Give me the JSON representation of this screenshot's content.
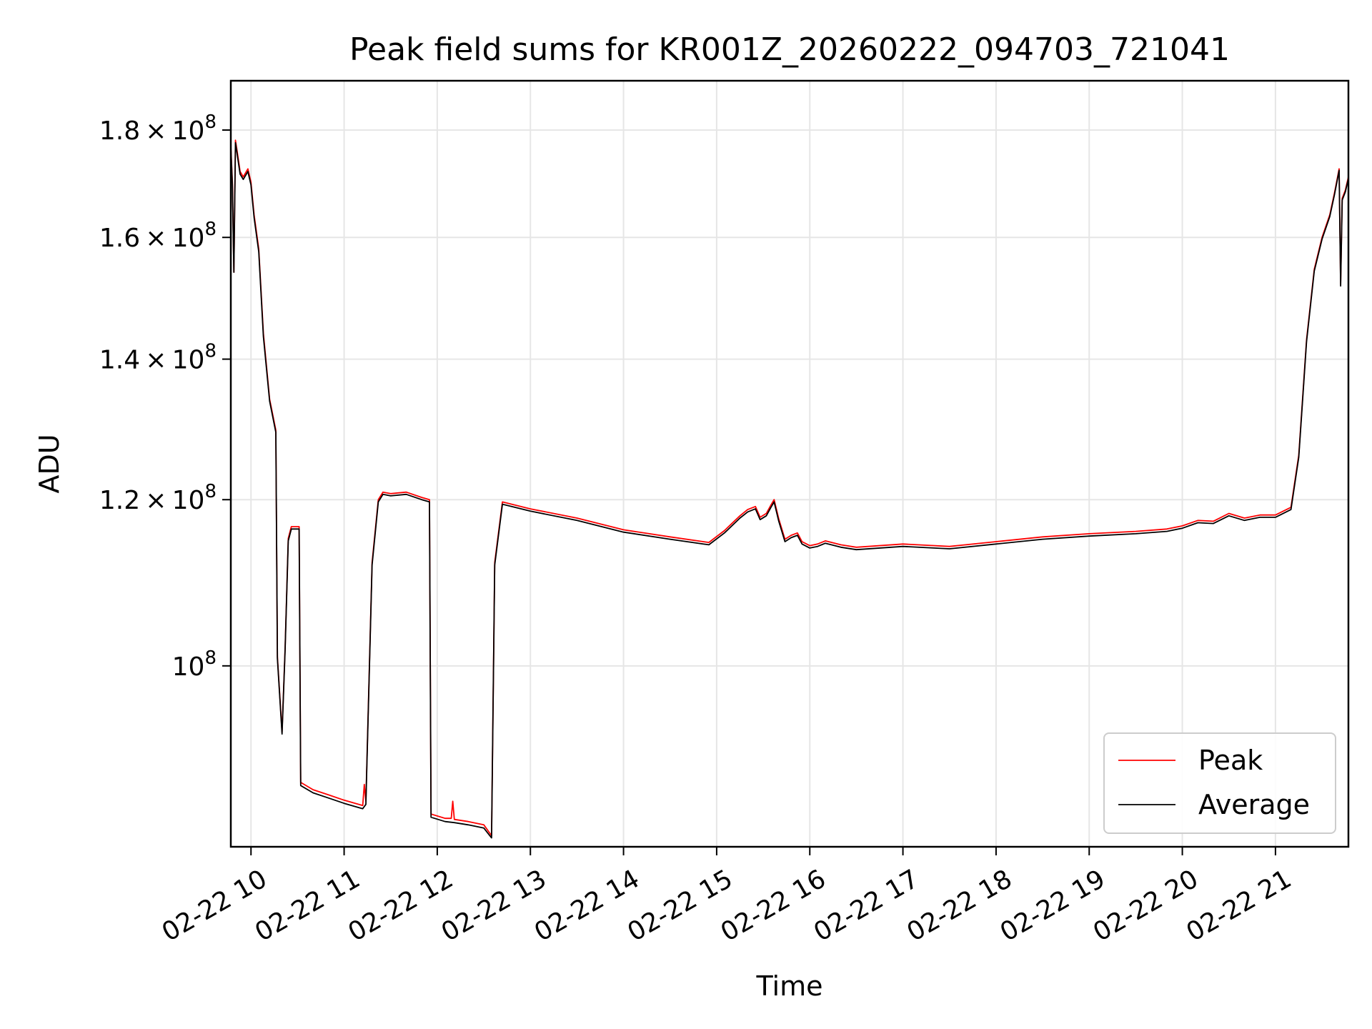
{
  "chart_data": {
    "type": "line",
    "title": "Peak field sums for KR001Z_20260222_094703_721041",
    "xlabel": "Time",
    "ylabel": "ADU",
    "yscale": "log",
    "ylim": [
      82000000,
      190000000
    ],
    "xlim": [
      "2026-02-22 09:47",
      "2026-02-22 21:47"
    ],
    "grid": true,
    "legend_position": "lower right",
    "x_ticks": [
      {
        "t": "2026-02-22 10:00",
        "label": "02-22 10"
      },
      {
        "t": "2026-02-22 11:00",
        "label": "02-22 11"
      },
      {
        "t": "2026-02-22 12:00",
        "label": "02-22 12"
      },
      {
        "t": "2026-02-22 13:00",
        "label": "02-22 13"
      },
      {
        "t": "2026-02-22 14:00",
        "label": "02-22 14"
      },
      {
        "t": "2026-02-22 15:00",
        "label": "02-22 15"
      },
      {
        "t": "2026-02-22 16:00",
        "label": "02-22 16"
      },
      {
        "t": "2026-02-22 17:00",
        "label": "02-22 17"
      },
      {
        "t": "2026-02-22 18:00",
        "label": "02-22 18"
      },
      {
        "t": "2026-02-22 19:00",
        "label": "02-22 19"
      },
      {
        "t": "2026-02-22 20:00",
        "label": "02-22 20"
      },
      {
        "t": "2026-02-22 21:00",
        "label": "02-22 21"
      }
    ],
    "y_ticks": [
      {
        "value": 100000000,
        "mantissa": "",
        "exponent": "8"
      },
      {
        "value": 120000000,
        "mantissa": "1.2",
        "exponent": "8"
      },
      {
        "value": 140000000,
        "mantissa": "1.4",
        "exponent": "8"
      },
      {
        "value": 160000000,
        "mantissa": "1.6",
        "exponent": "8"
      },
      {
        "value": 180000000,
        "mantissa": "1.8",
        "exponent": "8"
      }
    ],
    "series": [
      {
        "name": "Peak",
        "color": "#ff0000",
        "points": [
          [
            "2026-02-22 09:47",
            177000000
          ],
          [
            "2026-02-22 09:48",
            170000000
          ],
          [
            "2026-02-22 09:49",
            154000000
          ],
          [
            "2026-02-22 09:50",
            178000000
          ],
          [
            "2026-02-22 09:51",
            176000000
          ],
          [
            "2026-02-22 09:53",
            172000000
          ],
          [
            "2026-02-22 09:55",
            171000000
          ],
          [
            "2026-02-22 09:58",
            172500000
          ],
          [
            "2026-02-22 10:00",
            170000000
          ],
          [
            "2026-02-22 10:02",
            164000000
          ],
          [
            "2026-02-22 10:05",
            158000000
          ],
          [
            "2026-02-22 10:08",
            144000000
          ],
          [
            "2026-02-22 10:12",
            134000000
          ],
          [
            "2026-02-22 10:16",
            129500000
          ],
          [
            "2026-02-22 10:17",
            101000000
          ],
          [
            "2026-02-22 10:20",
            93000000
          ],
          [
            "2026-02-22 10:22",
            102000000
          ],
          [
            "2026-02-22 10:24",
            115000000
          ],
          [
            "2026-02-22 10:26",
            116500000
          ],
          [
            "2026-02-22 10:31",
            116500000
          ],
          [
            "2026-02-22 10:32",
            88000000
          ],
          [
            "2026-02-22 10:40",
            87300000
          ],
          [
            "2026-02-22 10:50",
            86800000
          ],
          [
            "2026-02-22 11:00",
            86300000
          ],
          [
            "2026-02-22 11:12",
            85800000
          ],
          [
            "2026-02-22 11:13",
            87800000
          ],
          [
            "2026-02-22 11:14",
            86200000
          ],
          [
            "2026-02-22 11:18",
            112000000
          ],
          [
            "2026-02-22 11:22",
            120000000
          ],
          [
            "2026-02-22 11:25",
            121000000
          ],
          [
            "2026-02-22 11:30",
            120800000
          ],
          [
            "2026-02-22 11:40",
            121000000
          ],
          [
            "2026-02-22 11:50",
            120300000
          ],
          [
            "2026-02-22 11:55",
            120000000
          ],
          [
            "2026-02-22 11:56",
            85000000
          ],
          [
            "2026-02-22 12:05",
            84600000
          ],
          [
            "2026-02-22 12:09",
            84600000
          ],
          [
            "2026-02-22 12:10",
            86200000
          ],
          [
            "2026-02-22 12:11",
            84500000
          ],
          [
            "2026-02-22 12:20",
            84300000
          ],
          [
            "2026-02-22 12:30",
            84000000
          ],
          [
            "2026-02-22 12:34",
            83200000
          ],
          [
            "2026-02-22 12:35",
            83000000
          ],
          [
            "2026-02-22 12:37",
            112000000
          ],
          [
            "2026-02-22 12:42",
            119700000
          ],
          [
            "2026-02-22 13:00",
            118800000
          ],
          [
            "2026-02-22 13:30",
            117600000
          ],
          [
            "2026-02-22 14:00",
            116100000
          ],
          [
            "2026-02-22 14:30",
            115200000
          ],
          [
            "2026-02-22 14:55",
            114500000
          ],
          [
            "2026-02-22 15:05",
            116000000
          ],
          [
            "2026-02-22 15:15",
            117900000
          ],
          [
            "2026-02-22 15:20",
            118700000
          ],
          [
            "2026-02-22 15:25",
            119100000
          ],
          [
            "2026-02-22 15:28",
            117700000
          ],
          [
            "2026-02-22 15:32",
            118200000
          ],
          [
            "2026-02-22 15:35",
            119300000
          ],
          [
            "2026-02-22 15:37",
            120000000
          ],
          [
            "2026-02-22 15:40",
            117500000
          ],
          [
            "2026-02-22 15:44",
            114900000
          ],
          [
            "2026-02-22 15:48",
            115400000
          ],
          [
            "2026-02-22 15:52",
            115700000
          ],
          [
            "2026-02-22 15:55",
            114600000
          ],
          [
            "2026-02-22 16:00",
            114100000
          ],
          [
            "2026-02-22 16:05",
            114300000
          ],
          [
            "2026-02-22 16:10",
            114700000
          ],
          [
            "2026-02-22 16:20",
            114200000
          ],
          [
            "2026-02-22 16:30",
            113900000
          ],
          [
            "2026-02-22 17:00",
            114300000
          ],
          [
            "2026-02-22 17:30",
            114000000
          ],
          [
            "2026-02-22 18:00",
            114600000
          ],
          [
            "2026-02-22 18:30",
            115200000
          ],
          [
            "2026-02-22 19:00",
            115600000
          ],
          [
            "2026-02-22 19:30",
            115900000
          ],
          [
            "2026-02-22 19:50",
            116200000
          ],
          [
            "2026-02-22 20:00",
            116600000
          ],
          [
            "2026-02-22 20:10",
            117300000
          ],
          [
            "2026-02-22 20:20",
            117200000
          ],
          [
            "2026-02-22 20:30",
            118200000
          ],
          [
            "2026-02-22 20:40",
            117600000
          ],
          [
            "2026-02-22 20:50",
            118000000
          ],
          [
            "2026-02-22 21:00",
            118000000
          ],
          [
            "2026-02-22 21:10",
            119000000
          ],
          [
            "2026-02-22 21:15",
            126000000
          ],
          [
            "2026-02-22 21:20",
            143000000
          ],
          [
            "2026-02-22 21:25",
            154500000
          ],
          [
            "2026-02-22 21:30",
            160000000
          ],
          [
            "2026-02-22 21:35",
            164000000
          ],
          [
            "2026-02-22 21:38",
            168000000
          ],
          [
            "2026-02-22 21:41",
            172500000
          ],
          [
            "2026-02-22 21:42",
            152000000
          ],
          [
            "2026-02-22 21:43",
            167000000
          ],
          [
            "2026-02-22 21:45",
            168500000
          ],
          [
            "2026-02-22 21:47",
            171000000
          ]
        ]
      },
      {
        "name": "Average",
        "color": "#000000",
        "points": [
          [
            "2026-02-22 09:47",
            176500000
          ],
          [
            "2026-02-22 09:48",
            169500000
          ],
          [
            "2026-02-22 09:49",
            154000000
          ],
          [
            "2026-02-22 09:50",
            177500000
          ],
          [
            "2026-02-22 09:51",
            175500000
          ],
          [
            "2026-02-22 09:53",
            171500000
          ],
          [
            "2026-02-22 09:55",
            170500000
          ],
          [
            "2026-02-22 09:58",
            172000000
          ],
          [
            "2026-02-22 10:00",
            169500000
          ],
          [
            "2026-02-22 10:02",
            163500000
          ],
          [
            "2026-02-22 10:05",
            157500000
          ],
          [
            "2026-02-22 10:08",
            143500000
          ],
          [
            "2026-02-22 10:12",
            133700000
          ],
          [
            "2026-02-22 10:16",
            129200000
          ],
          [
            "2026-02-22 10:17",
            100800000
          ],
          [
            "2026-02-22 10:20",
            92800000
          ],
          [
            "2026-02-22 10:22",
            101800000
          ],
          [
            "2026-02-22 10:24",
            114700000
          ],
          [
            "2026-02-22 10:26",
            116200000
          ],
          [
            "2026-02-22 10:31",
            116200000
          ],
          [
            "2026-02-22 10:32",
            87700000
          ],
          [
            "2026-02-22 10:40",
            87000000
          ],
          [
            "2026-02-22 10:50",
            86500000
          ],
          [
            "2026-02-22 11:00",
            86000000
          ],
          [
            "2026-02-22 11:12",
            85500000
          ],
          [
            "2026-02-22 11:14",
            85900000
          ],
          [
            "2026-02-22 11:18",
            111700000
          ],
          [
            "2026-02-22 11:22",
            119700000
          ],
          [
            "2026-02-22 11:25",
            120700000
          ],
          [
            "2026-02-22 11:30",
            120500000
          ],
          [
            "2026-02-22 11:40",
            120700000
          ],
          [
            "2026-02-22 11:50",
            120000000
          ],
          [
            "2026-02-22 11:55",
            119700000
          ],
          [
            "2026-02-22 11:56",
            84700000
          ],
          [
            "2026-02-22 12:05",
            84300000
          ],
          [
            "2026-02-22 12:11",
            84200000
          ],
          [
            "2026-02-22 12:20",
            84000000
          ],
          [
            "2026-02-22 12:30",
            83700000
          ],
          [
            "2026-02-22 12:35",
            82800000
          ],
          [
            "2026-02-22 12:37",
            111700000
          ],
          [
            "2026-02-22 12:42",
            119400000
          ],
          [
            "2026-02-22 13:00",
            118500000
          ],
          [
            "2026-02-22 13:30",
            117300000
          ],
          [
            "2026-02-22 14:00",
            115800000
          ],
          [
            "2026-02-22 14:30",
            114900000
          ],
          [
            "2026-02-22 14:55",
            114200000
          ],
          [
            "2026-02-22 15:05",
            115700000
          ],
          [
            "2026-02-22 15:15",
            117600000
          ],
          [
            "2026-02-22 15:20",
            118400000
          ],
          [
            "2026-02-22 15:25",
            118800000
          ],
          [
            "2026-02-22 15:28",
            117400000
          ],
          [
            "2026-02-22 15:32",
            117900000
          ],
          [
            "2026-02-22 15:35",
            119000000
          ],
          [
            "2026-02-22 15:37",
            119700000
          ],
          [
            "2026-02-22 15:40",
            117200000
          ],
          [
            "2026-02-22 15:44",
            114600000
          ],
          [
            "2026-02-22 15:48",
            115100000
          ],
          [
            "2026-02-22 15:52",
            115400000
          ],
          [
            "2026-02-22 15:55",
            114300000
          ],
          [
            "2026-02-22 16:00",
            113800000
          ],
          [
            "2026-02-22 16:05",
            114000000
          ],
          [
            "2026-02-22 16:10",
            114400000
          ],
          [
            "2026-02-22 16:20",
            113900000
          ],
          [
            "2026-02-22 16:30",
            113600000
          ],
          [
            "2026-02-22 17:00",
            114000000
          ],
          [
            "2026-02-22 17:30",
            113700000
          ],
          [
            "2026-02-22 18:00",
            114300000
          ],
          [
            "2026-02-22 18:30",
            114900000
          ],
          [
            "2026-02-22 19:00",
            115300000
          ],
          [
            "2026-02-22 19:30",
            115600000
          ],
          [
            "2026-02-22 19:50",
            115900000
          ],
          [
            "2026-02-22 20:00",
            116300000
          ],
          [
            "2026-02-22 20:10",
            117000000
          ],
          [
            "2026-02-22 20:20",
            116900000
          ],
          [
            "2026-02-22 20:30",
            117900000
          ],
          [
            "2026-02-22 20:40",
            117300000
          ],
          [
            "2026-02-22 20:50",
            117700000
          ],
          [
            "2026-02-22 21:00",
            117700000
          ],
          [
            "2026-02-22 21:10",
            118700000
          ],
          [
            "2026-02-22 21:15",
            125700000
          ],
          [
            "2026-02-22 21:20",
            142700000
          ],
          [
            "2026-02-22 21:25",
            154200000
          ],
          [
            "2026-02-22 21:30",
            159700000
          ],
          [
            "2026-02-22 21:35",
            163700000
          ],
          [
            "2026-02-22 21:38",
            167700000
          ],
          [
            "2026-02-22 21:41",
            172200000
          ],
          [
            "2026-02-22 21:42",
            151700000
          ],
          [
            "2026-02-22 21:43",
            166700000
          ],
          [
            "2026-02-22 21:45",
            168200000
          ],
          [
            "2026-02-22 21:47",
            170700000
          ]
        ]
      }
    ]
  }
}
